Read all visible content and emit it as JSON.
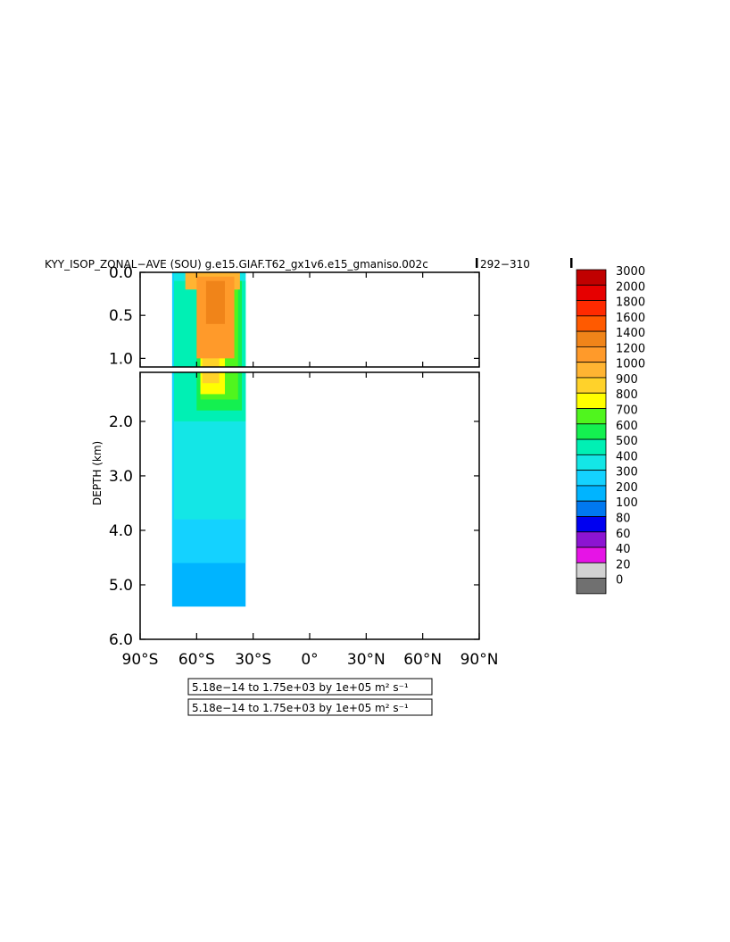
{
  "chart_data": {
    "type": "heatmap",
    "title": "KYY_ISOP_ZONAL−AVE (SOU) g.e15.GIAF.T62_gx1v6.e15_gmaniso.002c",
    "title_years": "292−310",
    "ylabel": "DEPTH (km)",
    "x_ticks": [
      "90°S",
      "60°S",
      "30°S",
      "0°",
      "30°N",
      "60°N",
      "90°N"
    ],
    "x_values": [
      -90,
      -60,
      -30,
      0,
      30,
      60,
      90
    ],
    "upper_panel": {
      "ylim": [
        0.0,
        1.1
      ],
      "y_ticks": [
        "0.0",
        "0.5",
        "1.0"
      ],
      "y_values": [
        0.0,
        0.5,
        1.0
      ]
    },
    "lower_panel": {
      "ylim": [
        1.1,
        6.0
      ],
      "y_ticks": [
        "2.0",
        "3.0",
        "4.0",
        "5.0",
        "6.0"
      ],
      "y_values": [
        2.0,
        3.0,
        4.0,
        5.0,
        6.0
      ]
    },
    "grid": false,
    "legend_placement": "right",
    "colorbar": {
      "levels": [
        "3000",
        "2000",
        "1800",
        "1600",
        "1400",
        "1200",
        "1000",
        "900",
        "800",
        "700",
        "600",
        "500",
        "400",
        "300",
        "200",
        "100",
        "80",
        "60",
        "40",
        "20",
        "0"
      ],
      "colors": [
        "#c00000",
        "#e60000",
        "#ff2a00",
        "#ff5a00",
        "#f08419",
        "#ff9a2a",
        "#ffb432",
        "#ffd22a",
        "#ffff00",
        "#50f51e",
        "#14f050",
        "#00f0b4",
        "#14e6e6",
        "#14d2ff",
        "#00b4ff",
        "#0078f0",
        "#0000f0",
        "#8c14d2",
        "#e614e6",
        "#d2d2d2",
        "#707070"
      ]
    },
    "info_boxes": [
      "5.18e−14 to 1.75e+03 by 1e+05 m² s⁻¹",
      "5.18e−14 to 1.75e+03 by 1e+05 m² s⁻¹"
    ],
    "field_regions": [
      {
        "level": "200",
        "lat_range": [
          -73,
          -34
        ],
        "depth_range": [
          1.1,
          5.4
        ]
      },
      {
        "level": "300",
        "lat_range": [
          -73,
          -34
        ],
        "depth_range": [
          0.0,
          4.6
        ]
      },
      {
        "level": "400",
        "lat_range": [
          -72,
          -34
        ],
        "depth_range": [
          0.0,
          3.8
        ]
      },
      {
        "level": "500",
        "lat_range": [
          -72,
          -34
        ],
        "depth_range": [
          0.1,
          2.0
        ]
      },
      {
        "level": "600",
        "lat_range": [
          -60,
          -36
        ],
        "depth_range": [
          0.1,
          1.8
        ]
      },
      {
        "level": "700",
        "lat_range": [
          -58,
          -38
        ],
        "depth_range": [
          0.1,
          1.6
        ]
      },
      {
        "level": "800",
        "lat_range": [
          -58,
          -45
        ],
        "depth_range": [
          0.1,
          1.5
        ]
      },
      {
        "level": "900",
        "lat_range": [
          -57,
          -48
        ],
        "depth_range": [
          0.1,
          1.3
        ]
      },
      {
        "level": "1000",
        "lat_range": [
          -66,
          -37
        ],
        "depth_range": [
          0.0,
          0.2
        ]
      },
      {
        "level": "1200",
        "lat_range": [
          -60,
          -40
        ],
        "depth_range": [
          0.05,
          1.0
        ]
      },
      {
        "level": "1400",
        "lat_range": [
          -55,
          -45
        ],
        "depth_range": [
          0.1,
          0.6
        ]
      }
    ]
  }
}
